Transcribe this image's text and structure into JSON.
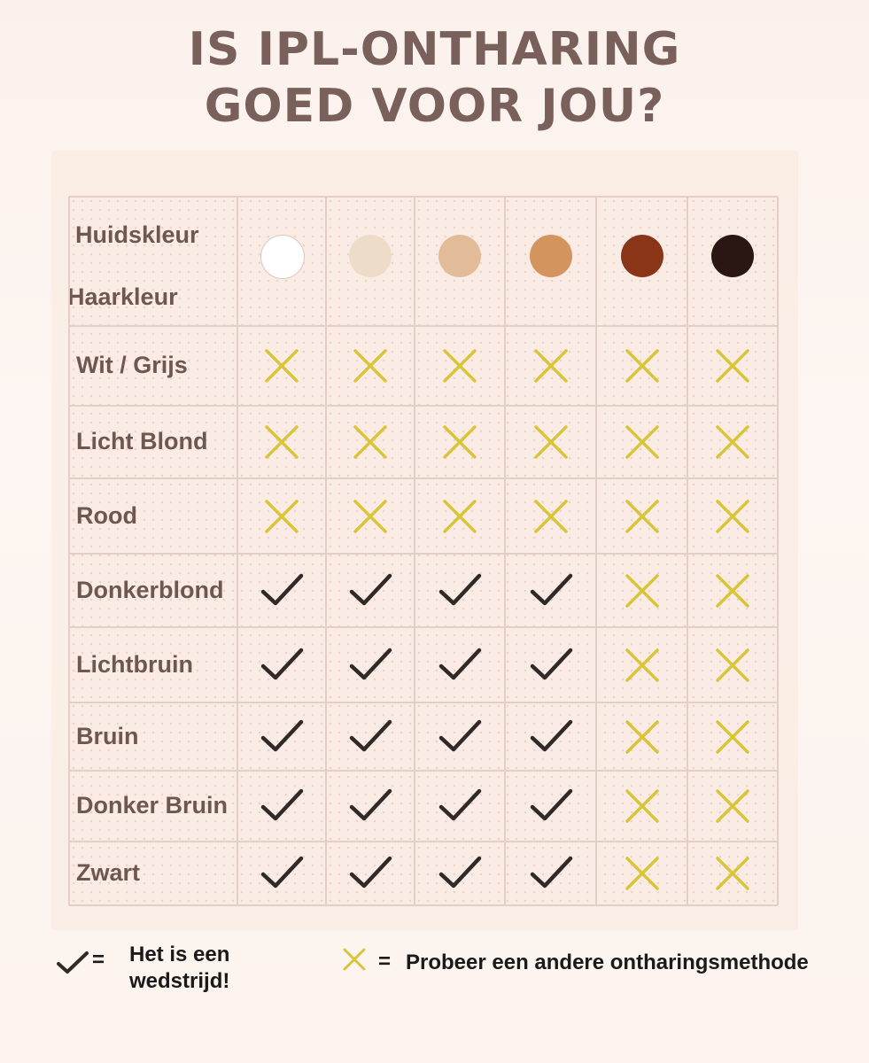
{
  "title": {
    "line1": "IS IPL-ONTHARING",
    "line2": "GOED VOOR JOU?"
  },
  "header": {
    "skin_label": "Huidskleur",
    "hair_label": "Haarkleur"
  },
  "skin_tones": [
    "#ffffff",
    "#ecdcc8",
    "#e2bb98",
    "#d4945e",
    "#8a3418",
    "#2a1612"
  ],
  "colors": {
    "check": "#2f2a27",
    "cross": "#d8c53a",
    "label": "#6e5750",
    "title": "#7a605a"
  },
  "rows": [
    {
      "label": "Wit / Grijs",
      "marks": [
        "x",
        "x",
        "x",
        "x",
        "x",
        "x"
      ]
    },
    {
      "label": "Licht Blond",
      "marks": [
        "x",
        "x",
        "x",
        "x",
        "x",
        "x"
      ]
    },
    {
      "label": "Rood",
      "marks": [
        "x",
        "x",
        "x",
        "x",
        "x",
        "x"
      ]
    },
    {
      "label": "Donkerblond",
      "marks": [
        "check",
        "check",
        "check",
        "check",
        "x",
        "x"
      ]
    },
    {
      "label": "Lichtbruin",
      "marks": [
        "check",
        "check",
        "check",
        "check",
        "x",
        "x"
      ]
    },
    {
      "label": "Bruin",
      "marks": [
        "check",
        "check",
        "check",
        "check",
        "x",
        "x"
      ]
    },
    {
      "label": "Donker Bruin",
      "marks": [
        "check",
        "check",
        "check",
        "check",
        "x",
        "x"
      ]
    },
    {
      "label": "Zwart",
      "marks": [
        "check",
        "check",
        "check",
        "check",
        "x",
        "x"
      ]
    }
  ],
  "legend": {
    "check_equals": "=",
    "check_text_line1": "Het is een",
    "check_text_line2": "wedstrijd!",
    "cross_equals": "=",
    "cross_text": "Probeer een andere ontharingsmethode"
  }
}
